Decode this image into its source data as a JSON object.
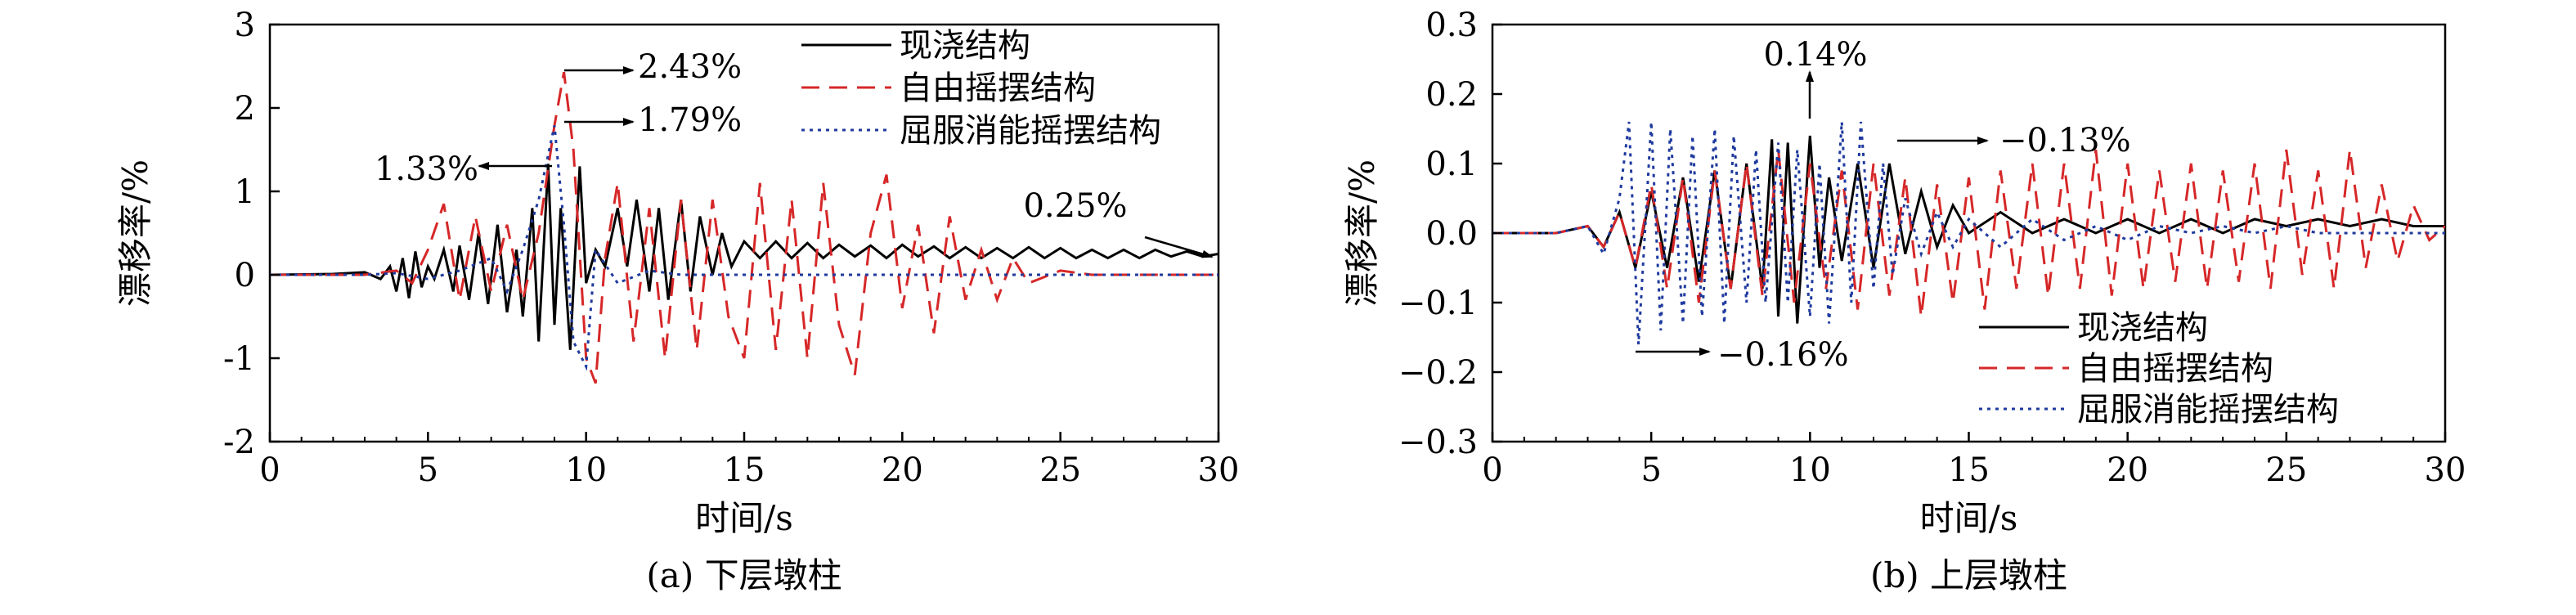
{
  "chart_data": [
    {
      "type": "line",
      "caption": "(a) 下层墩柱",
      "xlabel": "时间/s",
      "ylabel": "漂移率/%",
      "xlim": [
        0,
        30
      ],
      "ylim": [
        -2,
        3
      ],
      "xticks": [
        0,
        5,
        10,
        15,
        20,
        25,
        30
      ],
      "yticks": [
        -2,
        -1,
        0,
        1,
        2,
        3
      ],
      "legend_position": "top-right",
      "grid": false,
      "series": [
        {
          "name": "现浇结构",
          "color": "#000000",
          "dash": "solid",
          "x": [
            0,
            2,
            3,
            3.5,
            3.8,
            4.0,
            4.2,
            4.4,
            4.6,
            4.8,
            5.0,
            5.2,
            5.5,
            5.8,
            6.0,
            6.3,
            6.6,
            6.9,
            7.2,
            7.5,
            7.8,
            8.0,
            8.3,
            8.5,
            8.8,
            9.0,
            9.2,
            9.5,
            9.8,
            10.0,
            10.3,
            10.6,
            11.0,
            11.3,
            11.6,
            12.0,
            12.3,
            12.6,
            13.0,
            13.3,
            13.6,
            14.0,
            14.3,
            14.6,
            15.0,
            15.5,
            16.0,
            16.5,
            17.0,
            17.5,
            18.0,
            18.5,
            19.0,
            19.5,
            20.0,
            20.5,
            21.0,
            21.5,
            22.0,
            22.5,
            23.0,
            23.5,
            24.0,
            24.5,
            25.0,
            25.5,
            26.0,
            26.5,
            27.0,
            27.5,
            28.0,
            28.5,
            29.0,
            29.5,
            30.0
          ],
          "y": [
            0,
            0.01,
            0.03,
            -0.05,
            0.1,
            -0.2,
            0.2,
            -0.28,
            0.28,
            -0.15,
            0.1,
            -0.05,
            0.3,
            -0.2,
            0.35,
            -0.3,
            0.5,
            -0.35,
            0.6,
            -0.45,
            0.3,
            -0.5,
            0.8,
            -0.8,
            1.33,
            -0.6,
            0.8,
            -0.9,
            1.3,
            -0.1,
            0.3,
            0.1,
            0.8,
            0.1,
            0.9,
            -0.2,
            0.8,
            -0.3,
            0.9,
            -0.2,
            0.7,
            0.0,
            0.5,
            0.1,
            0.4,
            0.2,
            0.4,
            0.2,
            0.38,
            0.2,
            0.36,
            0.22,
            0.35,
            0.2,
            0.36,
            0.22,
            0.34,
            0.2,
            0.33,
            0.2,
            0.32,
            0.2,
            0.33,
            0.2,
            0.32,
            0.2,
            0.3,
            0.2,
            0.3,
            0.2,
            0.3,
            0.22,
            0.28,
            0.22,
            0.25
          ]
        },
        {
          "name": "自由摇摆结构",
          "color": "#d62728",
          "dash": "dash",
          "x": [
            0,
            3,
            4,
            4.5,
            5.0,
            5.5,
            6.0,
            6.5,
            7.0,
            7.5,
            8.0,
            8.5,
            9.0,
            9.3,
            9.6,
            10.0,
            10.3,
            10.6,
            11.0,
            11.5,
            12.0,
            12.5,
            13.0,
            13.5,
            14.0,
            14.5,
            15.0,
            15.5,
            16.0,
            16.5,
            17.0,
            17.5,
            18.0,
            18.5,
            19.0,
            19.5,
            20.0,
            20.5,
            21.0,
            21.5,
            22.0,
            22.5,
            23.0,
            23.5,
            24.0,
            25.0,
            26.0,
            27.0,
            28.0,
            29.0,
            30.0
          ],
          "y": [
            0,
            0,
            0.05,
            -0.1,
            0.3,
            0.85,
            -0.3,
            0.7,
            -0.2,
            0.6,
            -0.3,
            0.5,
            1.79,
            2.43,
            1.5,
            -1.0,
            -1.3,
            0.2,
            1.1,
            -0.8,
            0.8,
            -1.0,
            0.9,
            -0.9,
            0.9,
            -0.5,
            -1.0,
            1.1,
            -0.9,
            0.9,
            -1.0,
            1.1,
            -0.6,
            -1.2,
            0.5,
            1.2,
            -0.4,
            0.6,
            -0.7,
            0.7,
            -0.3,
            0.3,
            -0.3,
            0.2,
            -0.1,
            0.05,
            0,
            0,
            0,
            0,
            0
          ]
        },
        {
          "name": "屈服消能摇摆结构",
          "color": "#1f3a9e",
          "dash": "dot",
          "x": [
            0,
            3,
            4,
            5,
            6,
            7,
            7.5,
            8,
            8.5,
            9,
            9.3,
            9.6,
            10,
            10.3,
            11,
            12,
            13,
            14,
            15,
            17,
            20,
            25,
            30
          ],
          "y": [
            0,
            0,
            0.02,
            -0.05,
            0.05,
            0.2,
            -0.2,
            0.3,
            0.9,
            1.79,
            0.6,
            -0.8,
            -1.1,
            0.3,
            -0.1,
            0.05,
            0,
            0,
            0,
            0,
            0,
            0,
            0
          ]
        }
      ],
      "annotations": [
        {
          "text": "2.43%",
          "x": 9.3,
          "y": 2.43
        },
        {
          "text": "1.79%",
          "x": 9.3,
          "y": 1.79
        },
        {
          "text": "1.33%",
          "x": 8.8,
          "y": 1.33
        },
        {
          "text": "0.25%",
          "x": 30,
          "y": 0.25
        }
      ]
    },
    {
      "type": "line",
      "caption": "(b) 上层墩柱",
      "xlabel": "时间/s",
      "ylabel": "漂移率/%",
      "xlim": [
        0,
        30
      ],
      "ylim": [
        -0.3,
        0.3
      ],
      "xticks": [
        0,
        5,
        10,
        15,
        20,
        25,
        30
      ],
      "yticks": [
        -0.3,
        -0.2,
        -0.1,
        0.0,
        0.1,
        0.2,
        0.3
      ],
      "legend_position": "bottom-right",
      "grid": false,
      "series": [
        {
          "name": "现浇结构",
          "color": "#000000",
          "dash": "solid",
          "x": [
            0,
            2,
            3,
            3.5,
            4.0,
            4.5,
            5.0,
            5.5,
            6.0,
            6.5,
            7.0,
            7.5,
            8.0,
            8.5,
            8.8,
            9.0,
            9.3,
            9.6,
            10.0,
            10.3,
            10.6,
            11.0,
            11.5,
            12.0,
            12.5,
            13.0,
            13.5,
            14.0,
            14.5,
            15.0,
            16.0,
            17.0,
            18.0,
            19.0,
            20.0,
            21.0,
            22.0,
            23.0,
            24.0,
            25.0,
            26.0,
            27.0,
            28.0,
            29.0,
            30.0
          ],
          "y": [
            0,
            0,
            0.01,
            -0.02,
            0.03,
            -0.05,
            0.06,
            -0.05,
            0.08,
            -0.07,
            0.09,
            -0.08,
            0.1,
            -0.08,
            0.135,
            -0.12,
            0.13,
            -0.13,
            0.14,
            -0.05,
            0.08,
            -0.04,
            0.1,
            -0.05,
            0.1,
            -0.03,
            0.06,
            -0.02,
            0.04,
            0.0,
            0.03,
            0.0,
            0.02,
            0.0,
            0.02,
            0.0,
            0.02,
            0.0,
            0.02,
            0.01,
            0.02,
            0.01,
            0.02,
            0.01,
            0.01
          ]
        },
        {
          "name": "自由摇摆结构",
          "color": "#d62728",
          "dash": "dash",
          "x": [
            0,
            2,
            3,
            3.5,
            4,
            4.5,
            5,
            5.5,
            6,
            6.5,
            7,
            7.5,
            8,
            8.5,
            9,
            9.5,
            10,
            10.5,
            11,
            11.5,
            12,
            12.5,
            13,
            13.5,
            14,
            14.5,
            15,
            15.5,
            16,
            16.5,
            17,
            17.5,
            18,
            18.5,
            19,
            19.5,
            20,
            20.5,
            21,
            21.5,
            22,
            22.5,
            23,
            23.5,
            24,
            24.5,
            25,
            25.5,
            26,
            26.5,
            27,
            27.5,
            28,
            28.5,
            29,
            29.5,
            30
          ],
          "y": [
            0,
            0,
            0.01,
            -0.02,
            0.03,
            -0.05,
            0.07,
            -0.08,
            0.08,
            -0.1,
            0.09,
            -0.08,
            0.1,
            -0.09,
            0.12,
            -0.1,
            0.1,
            -0.08,
            0.09,
            -0.11,
            0.1,
            -0.09,
            0.08,
            -0.12,
            0.07,
            -0.1,
            0.08,
            -0.11,
            0.09,
            -0.08,
            0.1,
            -0.09,
            0.1,
            -0.08,
            0.12,
            -0.09,
            0.1,
            -0.08,
            0.09,
            -0.07,
            0.1,
            -0.08,
            0.09,
            -0.07,
            0.1,
            -0.08,
            0.12,
            -0.06,
            0.09,
            -0.08,
            0.12,
            -0.05,
            0.07,
            -0.04,
            0.04,
            -0.01,
            0.01
          ]
        },
        {
          "name": "屈服消能摇摆结构",
          "color": "#1f3a9e",
          "dash": "dot",
          "x": [
            0,
            2,
            3,
            3.5,
            4,
            4.3,
            4.6,
            5,
            5.3,
            5.6,
            6,
            6.3,
            6.6,
            7,
            7.3,
            7.6,
            8,
            8.3,
            8.6,
            9,
            9.3,
            9.6,
            10,
            10.3,
            10.6,
            11,
            11.3,
            11.6,
            12,
            12.3,
            12.6,
            13,
            13.5,
            14,
            14.5,
            15,
            16,
            17,
            18,
            19,
            20,
            21,
            22,
            23,
            24,
            25,
            26,
            27,
            28,
            29,
            30
          ],
          "y": [
            0,
            0,
            0.01,
            -0.03,
            0.05,
            0.16,
            -0.16,
            0.16,
            -0.14,
            0.15,
            -0.13,
            0.14,
            -0.12,
            0.15,
            -0.13,
            0.14,
            -0.1,
            0.12,
            -0.1,
            0.13,
            -0.1,
            0.12,
            -0.12,
            0.1,
            -0.13,
            0.16,
            -0.1,
            0.16,
            -0.08,
            0.1,
            -0.06,
            0.05,
            -0.03,
            0.03,
            -0.02,
            0.02,
            -0.02,
            0.02,
            -0.01,
            0.01,
            -0.01,
            0.01,
            0.0,
            0.01,
            0.0,
            0.01,
            0.0,
            0.0,
            0.0,
            0.0,
            0.0
          ]
        }
      ],
      "annotations": [
        {
          "text": "0.14%",
          "x": 10.0,
          "y": 0.14
        },
        {
          "text": "−0.13%",
          "x": 12.7,
          "y": 0.1
        },
        {
          "text": "−0.16%",
          "x": 4.6,
          "y": -0.16
        }
      ]
    }
  ]
}
